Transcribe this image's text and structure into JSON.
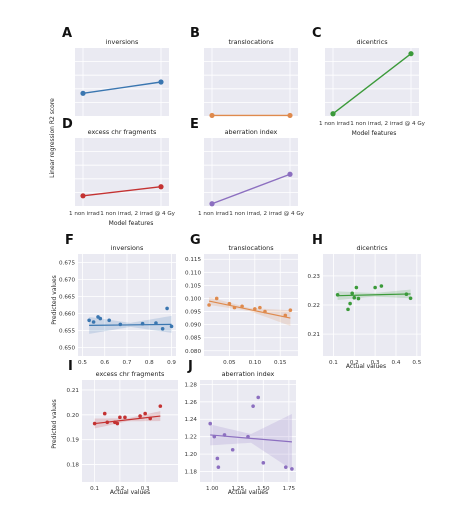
{
  "figure": {
    "colors": {
      "blue": "#3a76b0",
      "orange": "#df8a4d",
      "green": "#3b9a3a",
      "red": "#c43232",
      "purple": "#8c6fc0"
    },
    "shared_labels": {
      "top_ylabel": "Linear regression R2 score",
      "top_xlabel": "Model features",
      "bottom_ylabel": "Predicted values",
      "bottom_xlabel": "Actual values"
    }
  },
  "chart_data": [
    {
      "panel": "A",
      "type": "line",
      "title": "inversions",
      "color_key": "blue",
      "x": [
        "1 non irrad",
        "1 non irrad, 2 irrad @ 4 Gy"
      ],
      "values": [
        0.2,
        0.3
      ],
      "ylim": [
        0,
        0.6
      ],
      "show_xticks": false,
      "ylabel": "",
      "xlabel": ""
    },
    {
      "panel": "B",
      "type": "line",
      "title": "translocations",
      "color_key": "orange",
      "x": [
        "1 non irrad",
        "1 non irrad, 2 irrad @ 4 Gy"
      ],
      "values": [
        0.005,
        0.005
      ],
      "ylim": [
        0,
        0.6
      ],
      "show_xticks": false,
      "ylabel": "",
      "xlabel": ""
    },
    {
      "panel": "C",
      "type": "line",
      "title": "dicentrics",
      "color_key": "green",
      "x": [
        "1 non irrad",
        "1 non irrad, 2 irrad @ 4 Gy"
      ],
      "values": [
        0.02,
        0.55
      ],
      "ylim": [
        0,
        0.6
      ],
      "show_xticks": true,
      "ylabel": "",
      "xlabel": ""
    },
    {
      "panel": "D",
      "type": "line",
      "title": "excess chr fragments",
      "color_key": "red",
      "x": [
        "1 non irrad",
        "1 non irrad, 2 irrad @ 4 Gy"
      ],
      "values": [
        0.09,
        0.17
      ],
      "ylim": [
        0,
        0.6
      ],
      "show_xticks": true,
      "ylabel": "",
      "xlabel": ""
    },
    {
      "panel": "E",
      "type": "line",
      "title": "aberration index",
      "color_key": "purple",
      "x": [
        "1 non irrad",
        "1 non irrad, 2 irrad @ 4 Gy"
      ],
      "values": [
        0.02,
        0.28
      ],
      "ylim": [
        0,
        0.6
      ],
      "show_xticks": true,
      "ylabel": "",
      "xlabel": ""
    },
    {
      "panel": "F",
      "type": "scatter",
      "title": "inversions",
      "color_key": "blue",
      "xlim": [
        0.48,
        0.92
      ],
      "ylim": [
        0.6475,
        0.6775
      ],
      "xticks": [
        "0.5",
        "0.6",
        "0.7",
        "0.8",
        "0.9"
      ],
      "yticks": [
        "0.650",
        "0.655",
        "0.660",
        "0.665",
        "0.670",
        "0.675"
      ],
      "x": [
        0.53,
        0.55,
        0.57,
        0.58,
        0.62,
        0.67,
        0.77,
        0.83,
        0.86,
        0.88,
        0.9
      ],
      "y": [
        0.658,
        0.6575,
        0.659,
        0.6585,
        0.658,
        0.6568,
        0.657,
        0.6572,
        0.6555,
        0.6615,
        0.6562
      ],
      "fit": [
        0.6565,
        0.6568
      ],
      "band": [
        0.0025,
        0.0006,
        0.0025
      ],
      "ylabel": "",
      "xlabel": ""
    },
    {
      "panel": "G",
      "type": "scatter",
      "title": "translocations",
      "color_key": "orange",
      "xlim": [
        0.0,
        0.185
      ],
      "ylim": [
        0.078,
        0.117
      ],
      "xticks": [
        "0.05",
        "0.10",
        "0.15"
      ],
      "yticks": [
        "0.080",
        "0.085",
        "0.090",
        "0.095",
        "0.100",
        "0.105",
        "0.110",
        "0.115"
      ],
      "x": [
        0.01,
        0.025,
        0.05,
        0.06,
        0.075,
        0.1,
        0.11,
        0.12,
        0.16,
        0.17
      ],
      "y": [
        0.0975,
        0.1,
        0.098,
        0.0965,
        0.097,
        0.096,
        0.0965,
        0.095,
        0.0935,
        0.0955
      ],
      "fit": [
        0.099,
        0.0925
      ],
      "band": [
        0.0015,
        0.0006,
        0.003
      ],
      "ylabel": "",
      "xlabel": ""
    },
    {
      "panel": "H",
      "type": "scatter",
      "title": "dicentrics",
      "color_key": "green",
      "xlim": [
        0.05,
        0.52
      ],
      "ylim": [
        0.2025,
        0.2375
      ],
      "xticks": [
        "0.1",
        "0.2",
        "0.3",
        "0.4",
        "0.5"
      ],
      "yticks": [
        "0.21",
        "0.22",
        "0.23"
      ],
      "x": [
        0.12,
        0.17,
        0.18,
        0.19,
        0.2,
        0.21,
        0.22,
        0.3,
        0.33,
        0.45,
        0.47
      ],
      "y": [
        0.2235,
        0.2185,
        0.2205,
        0.224,
        0.2225,
        0.226,
        0.2222,
        0.226,
        0.2265,
        0.2237,
        0.2223
      ],
      "fit": [
        0.2232,
        0.2238
      ],
      "band": [
        0.0015,
        0.0006,
        0.0015
      ],
      "ylabel": "",
      "xlabel": ""
    },
    {
      "panel": "I",
      "type": "scatter",
      "title": "excess chr fragments",
      "color_key": "red",
      "xlim": [
        0.05,
        0.43
      ],
      "ylim": [
        0.173,
        0.214
      ],
      "xticks": [
        "0.1",
        "0.2",
        "0.3"
      ],
      "yticks": [
        "0.18",
        "0.19",
        "0.20",
        "0.21"
      ],
      "x": [
        0.1,
        0.14,
        0.15,
        0.18,
        0.19,
        0.2,
        0.22,
        0.28,
        0.3,
        0.32,
        0.36
      ],
      "y": [
        0.1965,
        0.2005,
        0.197,
        0.197,
        0.1965,
        0.199,
        0.199,
        0.1995,
        0.2005,
        0.1985,
        0.2035
      ],
      "fit": [
        0.1965,
        0.1995
      ],
      "band": [
        0.002,
        0.0006,
        0.002
      ],
      "ylabel": "",
      "xlabel": ""
    },
    {
      "panel": "J",
      "type": "scatter",
      "title": "aberration index",
      "color_key": "purple",
      "xlim": [
        0.88,
        1.82
      ],
      "ylim": [
        1.168,
        1.285
      ],
      "xticks": [
        "1.00",
        "1.25",
        "1.50",
        "1.75"
      ],
      "yticks": [
        "1.18",
        "1.20",
        "1.22",
        "1.24",
        "1.26",
        "1.28"
      ],
      "x": [
        0.98,
        1.02,
        1.05,
        1.06,
        1.12,
        1.2,
        1.35,
        1.4,
        1.45,
        1.5,
        1.72,
        1.78
      ],
      "y": [
        1.235,
        1.22,
        1.195,
        1.185,
        1.222,
        1.205,
        1.22,
        1.255,
        1.265,
        1.19,
        1.185,
        1.183
      ],
      "fit": [
        1.222,
        1.214
      ],
      "band": [
        0.012,
        0.005,
        0.032
      ],
      "ylabel": "",
      "xlabel": ""
    }
  ]
}
